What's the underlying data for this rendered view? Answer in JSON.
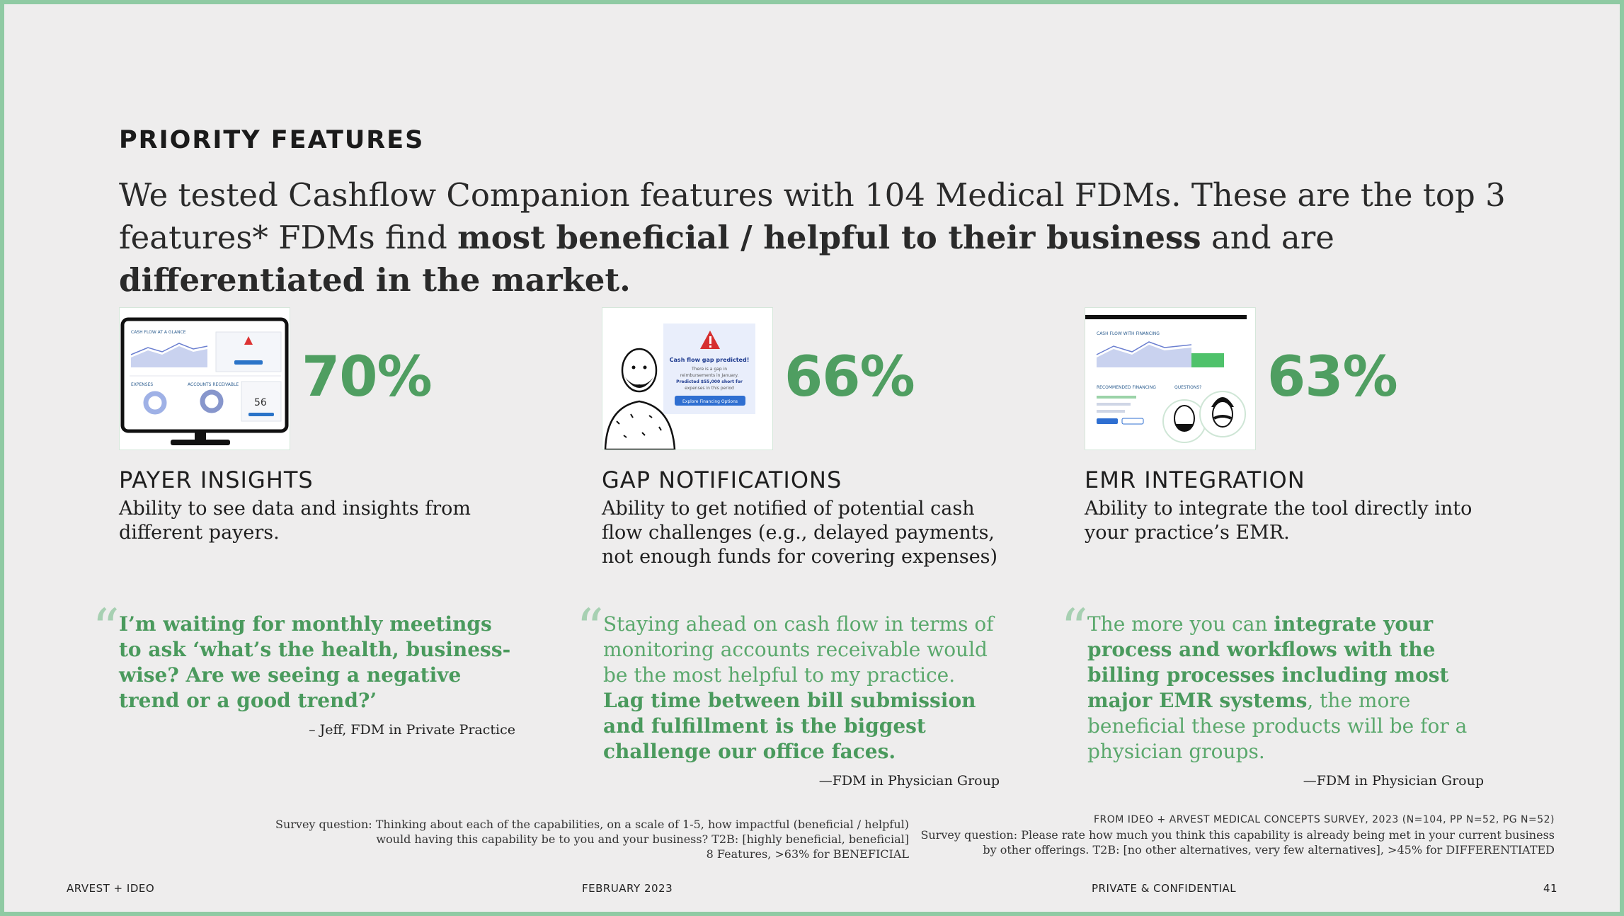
{
  "eyebrow": "PRIORITY FEATURES",
  "headline": {
    "part1": "We tested Cashflow Companion features with 104 Medical FDMs. These are the top 3 features* FDMs find ",
    "bold1": "most beneficial / helpful to their business",
    "part2": " and are ",
    "bold2": "differentiated in the market."
  },
  "colors": {
    "accent": "#4f9e61",
    "frame": "#8fcaa3",
    "background": "#eeeded"
  },
  "features": [
    {
      "percent": "70%",
      "title": "PAYER INSIGHTS",
      "desc": "Ability to see data and insights from different payers.",
      "illus": {
        "label1": "CASH FLOW AT A GLANCE",
        "label2": "EXPENSES",
        "label3": "ACCOUNTS RECEIVABLE",
        "number": "56"
      }
    },
    {
      "percent": "66%",
      "title": "GAP NOTIFICATIONS",
      "desc": "Ability to get notified of potential cash flow challenges (e.g., delayed payments, not enough funds for covering expenses)",
      "illus": {
        "alert_title": "Cash flow gap predicted!",
        "alert_line1": "There is a gap in",
        "alert_line2": "reimbursements in January.",
        "alert_line3": "Predicted $55,000 short for",
        "alert_line4": "expenses in this period",
        "alert_button": "Explore Financing Options"
      }
    },
    {
      "percent": "63%",
      "title": "EMR INTEGRATION",
      "desc": "Ability to integrate the tool directly into your practice’s EMR.",
      "illus": {
        "label1": "CASH FLOW WITH FINANCING",
        "label2": "RECOMMENDED FINANCING",
        "label3": "QUESTIONS?"
      }
    }
  ],
  "quotes": [
    {
      "mark": "“",
      "bold1": "I’m waiting for monthly meetings to ask ‘what’s the health, business-wise? Are we seeing a negative trend or a good trend?’",
      "attribution": "– Jeff, FDM in Private Practice"
    },
    {
      "mark": "“",
      "text1": "Staying ahead on cash flow in terms of monitoring accounts receivable would be the most helpful to my practice. ",
      "bold1": "Lag time between bill submission and fulfillment is the biggest challenge our office faces.",
      "attribution": "—FDM in Physician Group"
    },
    {
      "mark": "“",
      "text1": "The more you can ",
      "bold1": "integrate your process and workflows with the billing processes including most major EMR systems",
      "text2": ", the more beneficial these products will be for a physician groups.",
      "attribution": "—FDM in Physician Group"
    }
  ],
  "notes": {
    "left": [
      "Survey question: Thinking about each of the capabilities, on a scale of 1-5, how impactful (beneficial / helpful)",
      "would having this capability be to you and your business? T2B: [highly beneficial, beneficial]",
      "8 Features,  >63% for BENEFICIAL"
    ],
    "right_source": "FROM IDEO + ARVEST MEDICAL CONCEPTS SURVEY, 2023 (N=104, PP N=52, PG N=52)",
    "right": [
      "Survey question: Please rate how much you think this capability is already being met in your current business",
      "by other offerings. T2B: [no other alternatives, very few alternatives], >45% for DIFFERENTIATED"
    ]
  },
  "footer": {
    "left": "ARVEST + IDEO",
    "date": "FEBRUARY 2023",
    "confidential": "PRIVATE & CONFIDENTIAL",
    "page": "41"
  }
}
